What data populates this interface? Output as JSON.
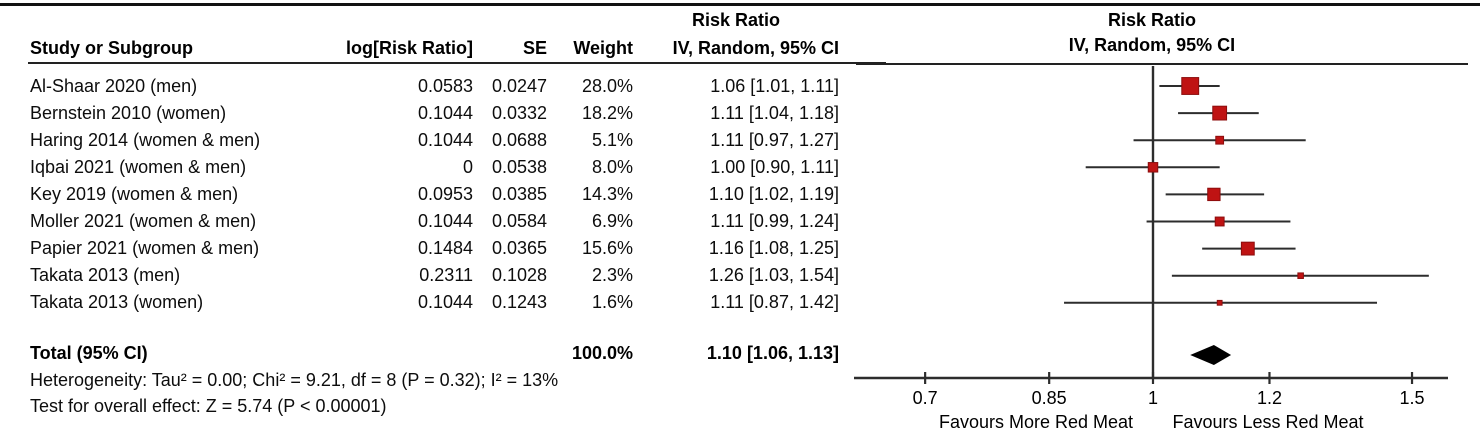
{
  "header": {
    "study": "Study or Subgroup",
    "log_rr": "log[Risk Ratio]",
    "se": "SE",
    "weight": "Weight",
    "ci": "IV, Random, 95% CI",
    "table_effect_title": "Risk Ratio",
    "plot_effect_title": "Risk Ratio",
    "plot_ci": "IV, Random, 95% CI"
  },
  "footnotes": {
    "heterogeneity": "Heterogeneity: Tau² = 0.00; Chi² = 9.21, df = 8 (P = 0.32); I² = 13%",
    "overall": "Test for overall effect: Z = 5.74 (P < 0.00001)"
  },
  "colors": {
    "marker_fill": "#bf1313",
    "marker_stroke": "#8c0d0d",
    "line": "#2d2d2d",
    "diamond": "#000000",
    "text": "#000000"
  },
  "chart_data": {
    "type": "scatter",
    "chart_subtype": "forest_plot_meta_analysis",
    "effect_measure": "Risk Ratio",
    "model": "IV, Random, 95% CI",
    "x_scale": "log",
    "null_line": 1,
    "x_ticks": [
      0.7,
      0.85,
      1,
      1.2,
      1.5
    ],
    "x_tick_labels": [
      "0.7",
      "0.85",
      "1",
      "1.2",
      "1.5"
    ],
    "xlim": [
      0.63,
      1.59
    ],
    "favours_left": "Favours More Red Meat",
    "favours_right": "Favours Less Red Meat",
    "studies": [
      {
        "name": "Al-Shaar 2020 (men)",
        "log_rr": "0.0583",
        "se": "0.0247",
        "weight_text": "28.0%",
        "ci_text": "1.06 [1.01, 1.11]",
        "rr": 1.06,
        "ci_low": 1.01,
        "ci_high": 1.11,
        "weight_pct": 28.0
      },
      {
        "name": "Bernstein 2010 (women)",
        "log_rr": "0.1044",
        "se": "0.0332",
        "weight_text": "18.2%",
        "ci_text": "1.11 [1.04, 1.18]",
        "rr": 1.11,
        "ci_low": 1.04,
        "ci_high": 1.18,
        "weight_pct": 18.2
      },
      {
        "name": "Haring 2014 (women & men)",
        "log_rr": "0.1044",
        "se": "0.0688",
        "weight_text": "5.1%",
        "ci_text": "1.11 [0.97, 1.27]",
        "rr": 1.11,
        "ci_low": 0.97,
        "ci_high": 1.27,
        "weight_pct": 5.1
      },
      {
        "name": "Iqbai 2021 (women & men)",
        "log_rr": "0",
        "se": "0.0538",
        "weight_text": "8.0%",
        "ci_text": "1.00 [0.90, 1.11]",
        "rr": 1.0,
        "ci_low": 0.9,
        "ci_high": 1.11,
        "weight_pct": 8.0
      },
      {
        "name": "Key 2019 (women & men)",
        "log_rr": "0.0953",
        "se": "0.0385",
        "weight_text": "14.3%",
        "ci_text": "1.10 [1.02, 1.19]",
        "rr": 1.1,
        "ci_low": 1.02,
        "ci_high": 1.19,
        "weight_pct": 14.3
      },
      {
        "name": "Moller 2021 (women & men)",
        "log_rr": "0.1044",
        "se": "0.0584",
        "weight_text": "6.9%",
        "ci_text": "1.11 [0.99, 1.24]",
        "rr": 1.11,
        "ci_low": 0.99,
        "ci_high": 1.24,
        "weight_pct": 6.9
      },
      {
        "name": "Papier 2021 (women & men)",
        "log_rr": "0.1484",
        "se": "0.0365",
        "weight_text": "15.6%",
        "ci_text": "1.16 [1.08, 1.25]",
        "rr": 1.16,
        "ci_low": 1.08,
        "ci_high": 1.25,
        "weight_pct": 15.6
      },
      {
        "name": "Takata 2013 (men)",
        "log_rr": "0.2311",
        "se": "0.1028",
        "weight_text": "2.3%",
        "ci_text": "1.26 [1.03, 1.54]",
        "rr": 1.26,
        "ci_low": 1.03,
        "ci_high": 1.54,
        "weight_pct": 2.3
      },
      {
        "name": "Takata 2013 (women)",
        "log_rr": "0.1044",
        "se": "0.1243",
        "weight_text": "1.6%",
        "ci_text": "1.11 [0.87, 1.42]",
        "rr": 1.11,
        "ci_low": 0.87,
        "ci_high": 1.42,
        "weight_pct": 1.6
      }
    ],
    "total": {
      "label": "Total (95% CI)",
      "weight_text": "100.0%",
      "ci_text": "1.10 [1.06, 1.13]",
      "rr": 1.1,
      "ci_low": 1.06,
      "ci_high": 1.13,
      "weight_pct": 100.0
    },
    "heterogeneity": {
      "tau2": 0.0,
      "chi2": 9.21,
      "df": 8,
      "p": 0.32,
      "i2_pct": 13
    },
    "overall_effect": {
      "z": 5.74,
      "p": "< 0.00001"
    }
  }
}
